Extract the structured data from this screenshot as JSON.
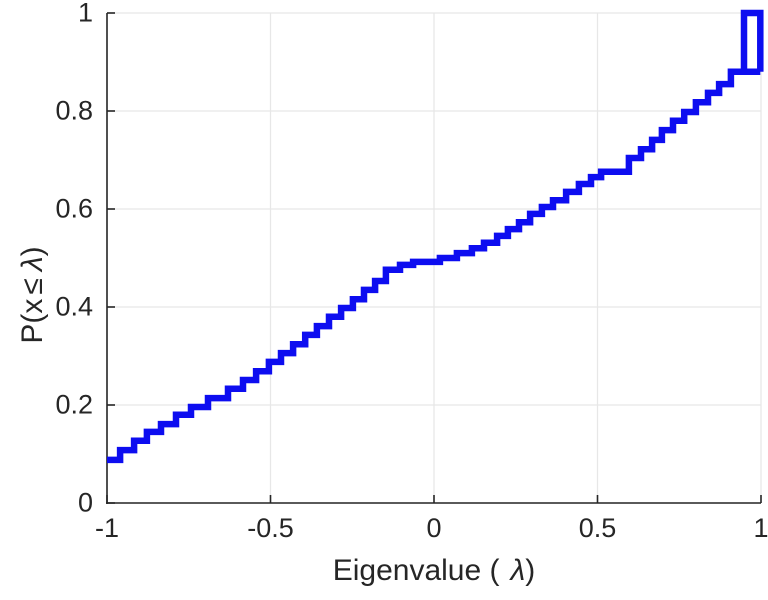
{
  "chart_data": {
    "type": "step",
    "subtype": "empirical-cdf",
    "title": "",
    "xlabel": "Eigenvalue ( λ)",
    "ylabel": "P(x ≤ λ)",
    "xlabel_parts": {
      "prefix": "Eigenvalue (",
      "lambda": "λ",
      "suffix": ")"
    },
    "ylabel_parts": {
      "prefix": "P(x",
      "leq": "≤",
      "lambda": "λ",
      "suffix": ")"
    },
    "xlim": [
      -1,
      1
    ],
    "ylim": [
      0,
      1
    ],
    "xticks": [
      -1,
      -0.5,
      0,
      0.5,
      1
    ],
    "xtick_labels": [
      "-1",
      "-0.5",
      "0",
      "0.5",
      "1"
    ],
    "yticks": [
      0,
      0.2,
      0.4,
      0.6,
      0.8,
      1
    ],
    "ytick_labels": [
      "0",
      "0.2",
      "0.4",
      "0.6",
      "0.8",
      "1"
    ],
    "grid": true,
    "legend": null,
    "line_color": "#0d0df0",
    "line_width": 6.5,
    "axis_color": "#262626",
    "grid_color": "#e7e7e7",
    "background_color": "#ffffff",
    "steps_note": "Step points [lambda, P(x<=lambda)] of the empirical CDF; curve is drawn as stairs (horizontal then vertical). Final points trace the closing jump to P=1 near lambda=0.95..1.",
    "steps": [
      [
        -1.0,
        0.088
      ],
      [
        -0.96,
        0.108
      ],
      [
        -0.917,
        0.127
      ],
      [
        -0.878,
        0.145
      ],
      [
        -0.835,
        0.161
      ],
      [
        -0.789,
        0.18
      ],
      [
        -0.743,
        0.196
      ],
      [
        -0.691,
        0.214
      ],
      [
        -0.63,
        0.233
      ],
      [
        -0.584,
        0.251
      ],
      [
        -0.544,
        0.269
      ],
      [
        -0.505,
        0.288
      ],
      [
        -0.468,
        0.306
      ],
      [
        -0.431,
        0.324
      ],
      [
        -0.394,
        0.343
      ],
      [
        -0.358,
        0.361
      ],
      [
        -0.321,
        0.38
      ],
      [
        -0.284,
        0.398
      ],
      [
        -0.248,
        0.416
      ],
      [
        -0.214,
        0.435
      ],
      [
        -0.18,
        0.453
      ],
      [
        -0.147,
        0.476
      ],
      [
        -0.104,
        0.486
      ],
      [
        -0.064,
        0.492
      ],
      [
        0.018,
        0.5
      ],
      [
        0.07,
        0.51
      ],
      [
        0.116,
        0.52
      ],
      [
        0.153,
        0.531
      ],
      [
        0.193,
        0.545
      ],
      [
        0.226,
        0.559
      ],
      [
        0.26,
        0.573
      ],
      [
        0.294,
        0.59
      ],
      [
        0.33,
        0.604
      ],
      [
        0.364,
        0.618
      ],
      [
        0.404,
        0.635
      ],
      [
        0.443,
        0.651
      ],
      [
        0.48,
        0.665
      ],
      [
        0.511,
        0.676
      ],
      [
        0.596,
        0.704
      ],
      [
        0.633,
        0.722
      ],
      [
        0.667,
        0.741
      ],
      [
        0.697,
        0.761
      ],
      [
        0.731,
        0.78
      ],
      [
        0.765,
        0.798
      ],
      [
        0.801,
        0.818
      ],
      [
        0.838,
        0.837
      ],
      [
        0.872,
        0.855
      ],
      [
        0.908,
        0.88
      ],
      [
        0.998,
        0.88
      ],
      [
        0.948,
        1.0
      ],
      [
        0.998,
        1.0
      ],
      [
        0.998,
        0.88
      ]
    ]
  }
}
